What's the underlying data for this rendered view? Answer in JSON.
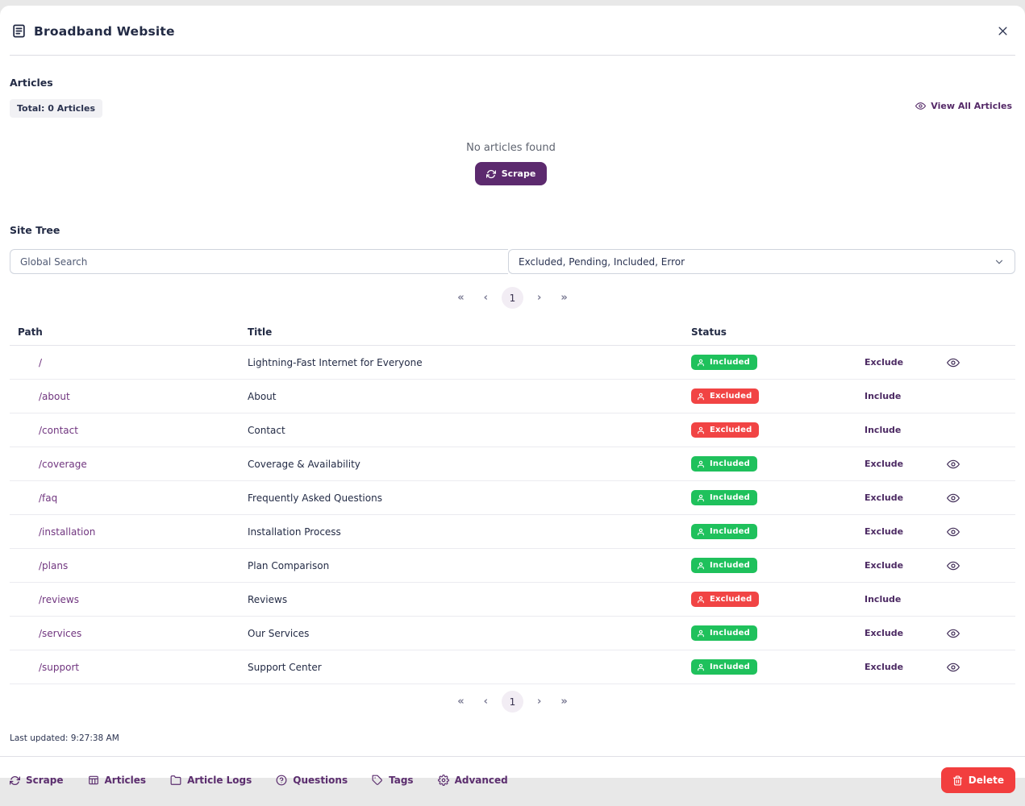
{
  "header": {
    "title": "Broadband Website"
  },
  "articles": {
    "section_title": "Articles",
    "total_badge": "Total: 0 Articles",
    "view_all_label": "View All Articles",
    "empty_text": "No articles found",
    "scrape_button": "Scrape"
  },
  "site_tree": {
    "section_title": "Site Tree",
    "search_placeholder": "Global Search",
    "filter_value": "Excluded, Pending, Included, Error",
    "pagination": {
      "first": "«",
      "prev": "‹",
      "page": "1",
      "next": "›",
      "last": "»"
    },
    "columns": {
      "path": "Path",
      "title": "Title",
      "status": "Status"
    },
    "rows": [
      {
        "path": "/",
        "title": "Lightning-Fast Internet for Everyone",
        "status": "Included",
        "action": "Exclude",
        "has_eye": true
      },
      {
        "path": "/about",
        "title": "About",
        "status": "Excluded",
        "action": "Include",
        "has_eye": false
      },
      {
        "path": "/contact",
        "title": "Contact",
        "status": "Excluded",
        "action": "Include",
        "has_eye": false
      },
      {
        "path": "/coverage",
        "title": "Coverage & Availability",
        "status": "Included",
        "action": "Exclude",
        "has_eye": true
      },
      {
        "path": "/faq",
        "title": "Frequently Asked Questions",
        "status": "Included",
        "action": "Exclude",
        "has_eye": true
      },
      {
        "path": "/installation",
        "title": "Installation Process",
        "status": "Included",
        "action": "Exclude",
        "has_eye": true
      },
      {
        "path": "/plans",
        "title": "Plan Comparison",
        "status": "Included",
        "action": "Exclude",
        "has_eye": true
      },
      {
        "path": "/reviews",
        "title": "Reviews",
        "status": "Excluded",
        "action": "Include",
        "has_eye": false
      },
      {
        "path": "/services",
        "title": "Our Services",
        "status": "Included",
        "action": "Exclude",
        "has_eye": true
      },
      {
        "path": "/support",
        "title": "Support Center",
        "status": "Included",
        "action": "Exclude",
        "has_eye": true
      }
    ]
  },
  "footer": {
    "last_updated": "Last updated: 9:27:38 AM",
    "tabs": [
      {
        "label": "Scrape",
        "icon": "refresh-icon"
      },
      {
        "label": "Articles",
        "icon": "table-icon"
      },
      {
        "label": "Article Logs",
        "icon": "folder-icon"
      },
      {
        "label": "Questions",
        "icon": "question-circle-icon"
      },
      {
        "label": "Tags",
        "icon": "tag-icon"
      },
      {
        "label": "Advanced",
        "icon": "gear-icon"
      }
    ],
    "delete_button": "Delete"
  },
  "colors": {
    "included": "#1fc15c",
    "excluded": "#f14444",
    "accent_purple": "#5c2a6e",
    "link_purple": "#70357f",
    "delete_red": "#f23e3e",
    "navy": "#232b45"
  }
}
